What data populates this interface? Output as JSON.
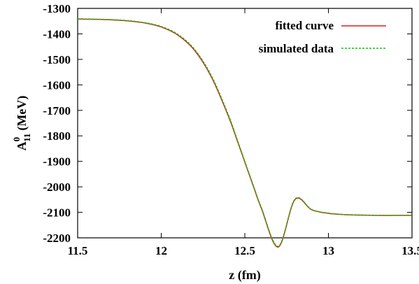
{
  "chart_data": {
    "type": "line",
    "xlabel": "z (fm)",
    "ylabel": {
      "base": "A",
      "sup": "0",
      "sub": "11",
      "unit": "(MeV)"
    },
    "xlim": [
      11.5,
      13.5
    ],
    "ylim": [
      -2200,
      -1300
    ],
    "xticks": [
      11.5,
      12,
      12.5,
      13,
      13.5
    ],
    "xtick_labels": [
      "11.5",
      "12",
      "12.5",
      "13",
      "13.5"
    ],
    "yticks": [
      -2200,
      -2100,
      -2000,
      -1900,
      -1800,
      -1700,
      -1600,
      -1500,
      -1400,
      -1300
    ],
    "ytick_labels": [
      "-2200",
      "-2100",
      "-2000",
      "-1900",
      "-1800",
      "-1700",
      "-1600",
      "-1500",
      "-1400",
      "-1300"
    ],
    "grid": false,
    "legend_position": "top-right",
    "x": [
      11.5,
      11.6,
      11.7,
      11.8,
      11.9,
      12.0,
      12.1,
      12.2,
      12.3,
      12.4,
      12.45,
      12.5,
      12.55,
      12.6,
      12.7,
      12.8,
      12.9,
      13.0,
      13.1,
      13.2,
      13.3,
      13.4,
      13.5
    ],
    "series": [
      {
        "name": "fitted curve",
        "color": "#e41a1c",
        "style": "solid",
        "values": [
          -1342,
          -1343,
          -1345,
          -1349,
          -1357,
          -1373,
          -1405,
          -1465,
          -1569,
          -1720,
          -1810,
          -1903,
          -1996,
          -2086,
          -2236,
          -2050,
          -2090,
          -2104,
          -2109,
          -2111,
          -2112,
          -2112,
          -2112
        ]
      },
      {
        "name": "simulated data",
        "color": "#00c800",
        "style": "dashed",
        "values": [
          -1341,
          -1342,
          -1344,
          -1348,
          -1356,
          -1371,
          -1402,
          -1461,
          -1564,
          -1715,
          -1806,
          -1900,
          -1993,
          -2083,
          -2233,
          -2048,
          -2089,
          -2103,
          -2109,
          -2111,
          -2112,
          -2112,
          -2112
        ]
      }
    ]
  }
}
